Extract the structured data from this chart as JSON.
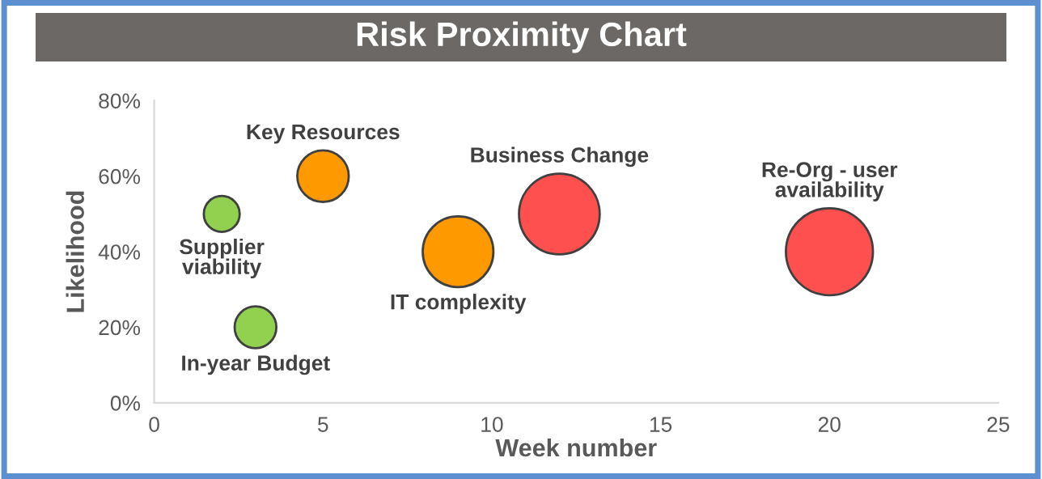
{
  "chart_data": {
    "type": "bubble",
    "title": "Risk Proximity Chart",
    "xlabel": "Week number",
    "ylabel": "Likelihood",
    "xlim": [
      0,
      25
    ],
    "xticks": [
      0,
      5,
      10,
      15,
      20,
      25
    ],
    "ylim": [
      0,
      80
    ],
    "yticks": [
      {
        "value": 0,
        "label": "0%"
      },
      {
        "value": 20,
        "label": "20%"
      },
      {
        "value": 40,
        "label": "40%"
      },
      {
        "value": 60,
        "label": "60%"
      },
      {
        "value": 80,
        "label": "80%"
      }
    ],
    "grid": false,
    "legend": false,
    "series": [
      {
        "name": "Supplier\nviability",
        "color": "#92d050",
        "x": [
          2
        ],
        "values": [
          50
        ],
        "sizes": [
          0.17
        ]
      },
      {
        "name": "Key Resources",
        "color": "#ff9900",
        "x": [
          5
        ],
        "values": [
          60
        ],
        "sizes": [
          0.35
        ]
      },
      {
        "name": "In-year Budget",
        "color": "#92d050",
        "x": [
          3
        ],
        "values": [
          20
        ],
        "sizes": [
          0.23
        ]
      },
      {
        "name": "IT complexity",
        "color": "#ff9900",
        "x": [
          9
        ],
        "values": [
          40
        ],
        "sizes": [
          0.66
        ]
      },
      {
        "name": "Business Change",
        "color": "#ff5050",
        "x": [
          12
        ],
        "values": [
          50
        ],
        "sizes": [
          0.86
        ]
      },
      {
        "name": "Re-Org - user\navailability",
        "color": "#ff5050",
        "x": [
          20
        ],
        "values": [
          40
        ],
        "sizes": [
          1.0
        ]
      }
    ]
  }
}
